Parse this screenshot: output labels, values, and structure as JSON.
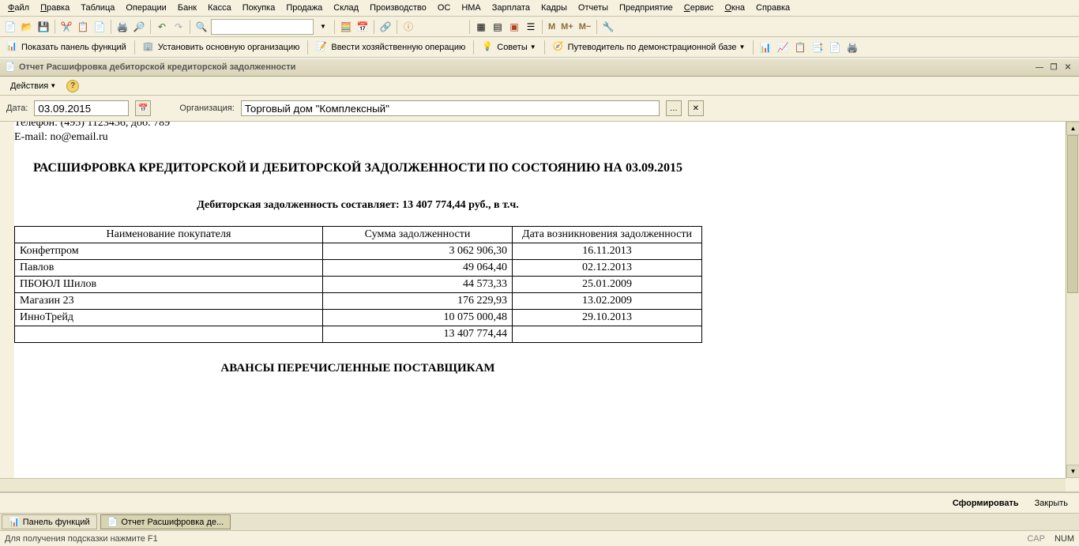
{
  "menu": [
    "Файл",
    "Правка",
    "Таблица",
    "Операции",
    "Банк",
    "Касса",
    "Покупка",
    "Продажа",
    "Склад",
    "Производство",
    "ОС",
    "НМА",
    "Зарплата",
    "Кадры",
    "Отчеты",
    "Предприятие",
    "Сервис",
    "Окна",
    "Справка"
  ],
  "menu_underline_idx": [
    0,
    0,
    -1,
    -1,
    -1,
    -1,
    -1,
    -1,
    -1,
    -1,
    -1,
    -1,
    -1,
    -1,
    -1,
    -1,
    0,
    0,
    -1
  ],
  "toolbar2": {
    "show_panel": "Показать панель функций",
    "set_org": "Установить основную организацию",
    "enter_op": "Ввести хозяйственную операцию",
    "tips": "Советы",
    "guide": "Путеводитель по демонстрационной базе"
  },
  "report_title": "Отчет  Расшифровка дебиторской кредиторской задолженности",
  "actions_label": "Действия",
  "params": {
    "date_label": "Дата:",
    "date_value": "03.09.2015",
    "org_label": "Организация:",
    "org_value": "Торговый дом \"Комплексный\""
  },
  "doc": {
    "phone": "Телефон: (495) 1123456, доб. 789",
    "email": "E-mail: no@email.ru",
    "heading": "РАСШИФРОВКА КРЕДИТОРСКОЙ И ДЕБИТОРСКОЙ ЗАДОЛЖЕННОСТИ ПО СОСТОЯНИЮ НА 03.09.2015",
    "subheading": "Дебиторская задолженность составляет: 13 407 774,44 руб., в т.ч.",
    "columns": [
      "Наименование покупателя",
      "Сумма задолженности",
      "Дата возникновения задолженности"
    ],
    "rows": [
      {
        "name": "Конфетпром",
        "sum": "3 062 906,30",
        "date": "16.11.2013"
      },
      {
        "name": "Павлов",
        "sum": "49 064,40",
        "date": "02.12.2013"
      },
      {
        "name": "ПБОЮЛ  Шилов",
        "sum": "44 573,33",
        "date": "25.01.2009"
      },
      {
        "name": "Магазин 23",
        "sum": "176 229,93",
        "date": "13.02.2009"
      },
      {
        "name": "ИнноТрейд",
        "sum": "10 075 000,48",
        "date": "29.10.2013"
      }
    ],
    "total_sum": "13 407 774,44",
    "section2": "АВАНСЫ ПЕРЕЧИСЛЕННЫЕ ПОСТАВЩИКАМ"
  },
  "buttons": {
    "form": "Сформировать",
    "close": "Закрыть"
  },
  "taskbar": {
    "panel": "Панель функций",
    "report": "Отчет  Расшифровка де..."
  },
  "status": {
    "hint": "Для получения подсказки нажмите F1",
    "cap": "CAP",
    "num": "NUM"
  },
  "colors": {
    "bg": "#f5f1de",
    "border": "#c5c0a8",
    "doc_bg": "#ffffff"
  }
}
